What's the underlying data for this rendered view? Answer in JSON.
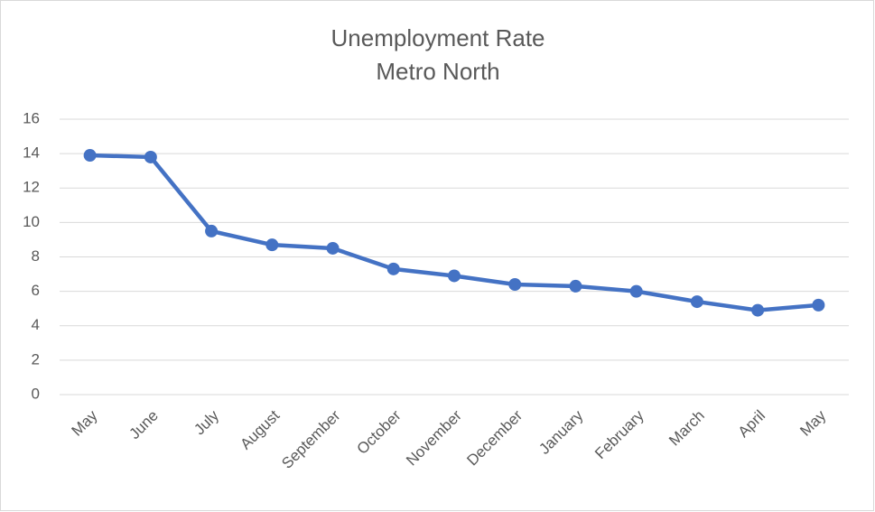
{
  "chart_data": {
    "type": "line",
    "title": "Unemployment Rate",
    "subtitle": "Metro North",
    "categories": [
      "May",
      "June",
      "July",
      "August",
      "September",
      "October",
      "November",
      "December",
      "January",
      "February",
      "March",
      "April",
      "May"
    ],
    "series": [
      {
        "name": "Unemployment Rate",
        "color": "#4472c4",
        "values": [
          13.9,
          13.8,
          9.5,
          8.7,
          8.5,
          7.3,
          6.9,
          6.4,
          6.3,
          6.0,
          5.4,
          4.9,
          5.2
        ]
      }
    ],
    "ylim": [
      0,
      16
    ],
    "yticks": [
      0,
      2,
      4,
      6,
      8,
      10,
      12,
      14,
      16
    ],
    "grid": true
  }
}
